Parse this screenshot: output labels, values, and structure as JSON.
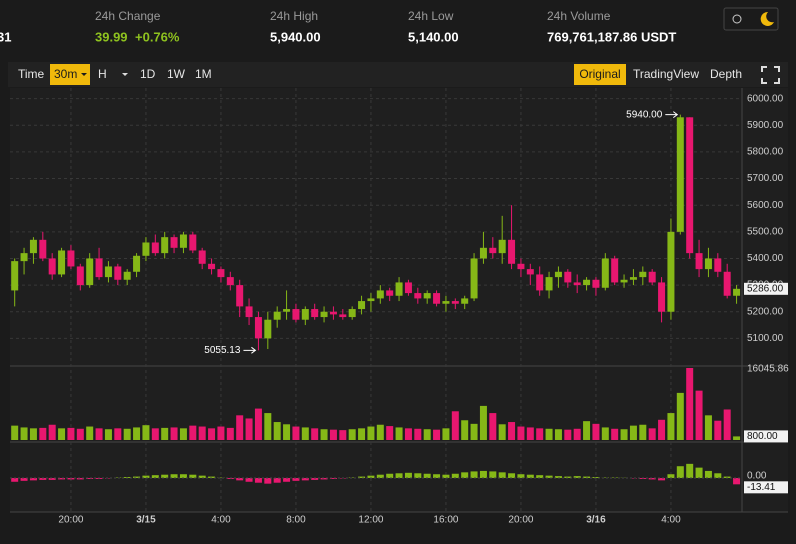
{
  "header": {
    "pair_fragment": "31",
    "stats": [
      {
        "label": "24h Change",
        "value": "39.99",
        "change": "+0.76%"
      },
      {
        "label": "24h High",
        "value": "5,940.00"
      },
      {
        "label": "24h Low",
        "value": "5,140.00"
      },
      {
        "label": "24h Volume",
        "value": "769,761,187.86 USDT"
      }
    ]
  },
  "toolbar": {
    "intervals": [
      {
        "label": "Time"
      },
      {
        "label": "30m",
        "active": true
      },
      {
        "label": "H"
      },
      {
        "label": "1D"
      },
      {
        "label": "1W"
      },
      {
        "label": "1M"
      }
    ],
    "views": [
      {
        "label": "Original",
        "active": true
      },
      {
        "label": "TradingView"
      },
      {
        "label": "Depth"
      }
    ]
  },
  "chart_data": {
    "type": "candlestick",
    "categories": [
      null,
      null,
      null,
      null,
      null,
      null,
      "20:00",
      null,
      null,
      null,
      null,
      null,
      null,
      null,
      "3/15",
      null,
      null,
      null,
      null,
      null,
      null,
      null,
      "4:00",
      null,
      null,
      null,
      null,
      null,
      null,
      null,
      "8:00",
      null,
      null,
      null,
      null,
      null,
      null,
      null,
      "12:00",
      null,
      null,
      null,
      null,
      null,
      null,
      null,
      "16:00",
      null,
      null,
      null,
      null,
      null,
      null,
      null,
      "20:00",
      null,
      null,
      null,
      null,
      null,
      null,
      null,
      "3/16",
      null,
      null,
      null,
      null,
      null,
      null,
      null,
      "4:00",
      null,
      null,
      null,
      null,
      null,
      null,
      null
    ],
    "open": [
      5280,
      5390,
      5420,
      5470,
      5400,
      5340,
      5430,
      5370,
      5300,
      5400,
      5330,
      5370,
      5320,
      5350,
      5410,
      5460,
      5420,
      5480,
      5440,
      5490,
      5430,
      5380,
      5360,
      5330,
      5300,
      5220,
      5180,
      5100,
      5170,
      5200,
      5210,
      5170,
      5210,
      5180,
      5200,
      5190,
      5180,
      5210,
      5240,
      5250,
      5280,
      5260,
      5310,
      5270,
      5250,
      5270,
      5230,
      5240,
      5230,
      5250,
      5400,
      5440,
      5420,
      5470,
      5380,
      5360,
      5340,
      5280,
      5330,
      5350,
      5310,
      5300,
      5320,
      5290,
      5400,
      5310,
      5320,
      5330,
      5350,
      5310,
      5200,
      5500,
      5930,
      5420,
      5360,
      5400,
      5350,
      5260
    ],
    "high": [
      5400,
      5440,
      5480,
      5500,
      5420,
      5440,
      5450,
      5380,
      5420,
      5440,
      5390,
      5380,
      5360,
      5420,
      5480,
      5490,
      5500,
      5490,
      5500,
      5500,
      5440,
      5400,
      5370,
      5350,
      5320,
      5250,
      5200,
      5200,
      5220,
      5280,
      5230,
      5220,
      5230,
      5220,
      5220,
      5210,
      5220,
      5260,
      5270,
      5300,
      5290,
      5330,
      5320,
      5290,
      5280,
      5280,
      5260,
      5250,
      5260,
      5420,
      5500,
      5480,
      5560,
      5600,
      5400,
      5380,
      5370,
      5350,
      5370,
      5360,
      5340,
      5330,
      5330,
      5420,
      5410,
      5340,
      5360,
      5370,
      5360,
      5330,
      5550,
      5940,
      5930,
      5470,
      5440,
      5420,
      5380,
      5300
    ],
    "low": [
      5220,
      5340,
      5380,
      5390,
      5320,
      5330,
      5360,
      5280,
      5290,
      5320,
      5310,
      5300,
      5300,
      5330,
      5390,
      5410,
      5400,
      5420,
      5420,
      5420,
      5360,
      5340,
      5310,
      5280,
      5180,
      5150,
      5055.13,
      5060,
      5140,
      5170,
      5160,
      5150,
      5170,
      5160,
      5170,
      5170,
      5170,
      5190,
      5200,
      5230,
      5240,
      5240,
      5260,
      5230,
      5230,
      5220,
      5200,
      5210,
      5210,
      5240,
      5380,
      5400,
      5380,
      5360,
      5330,
      5300,
      5260,
      5250,
      5290,
      5290,
      5270,
      5280,
      5260,
      5280,
      5300,
      5290,
      5300,
      5300,
      5300,
      5160,
      5170,
      5490,
      5400,
      5330,
      5330,
      5330,
      5250,
      5230
    ],
    "close": [
      5390,
      5420,
      5470,
      5400,
      5340,
      5430,
      5370,
      5300,
      5400,
      5330,
      5370,
      5320,
      5350,
      5410,
      5460,
      5420,
      5480,
      5440,
      5490,
      5430,
      5380,
      5360,
      5330,
      5300,
      5220,
      5180,
      5100,
      5170,
      5200,
      5210,
      5170,
      5210,
      5180,
      5200,
      5190,
      5180,
      5210,
      5240,
      5250,
      5280,
      5260,
      5310,
      5270,
      5250,
      5270,
      5230,
      5240,
      5230,
      5250,
      5400,
      5440,
      5420,
      5470,
      5380,
      5360,
      5340,
      5280,
      5330,
      5350,
      5310,
      5300,
      5320,
      5290,
      5400,
      5310,
      5320,
      5330,
      5350,
      5310,
      5200,
      5500,
      5930,
      5420,
      5360,
      5400,
      5350,
      5260,
      5286
    ],
    "up_color": "#86b817",
    "down_color": "#e8176f",
    "ylim": [
      5000,
      6040
    ],
    "yticks": [
      {
        "value": 5100,
        "label": "5100.00"
      },
      {
        "value": 5200,
        "label": "5200.00"
      },
      {
        "value": 5300,
        "label": "5300.00"
      },
      {
        "value": 5400,
        "label": "5400.00"
      },
      {
        "value": 5500,
        "label": "5500.00"
      },
      {
        "value": 5600,
        "label": "5600.00"
      },
      {
        "value": 5700,
        "label": "5700.00"
      },
      {
        "value": 5800,
        "label": "5800.00"
      },
      {
        "value": 5900,
        "label": "5900.00"
      },
      {
        "value": 6000,
        "label": "6000.00"
      }
    ],
    "grid": true,
    "annotations": [
      {
        "value": 5940,
        "label": "5940.00",
        "field": "high"
      },
      {
        "value": 5055.13,
        "label": "5055.13",
        "field": "low"
      }
    ],
    "last_price": {
      "value": 5286,
      "label": "5286.00"
    },
    "volume": {
      "values": [
        3200,
        2800,
        2600,
        2700,
        3400,
        2600,
        2700,
        2500,
        3000,
        2600,
        2400,
        2600,
        2500,
        2800,
        3300,
        2600,
        2700,
        2800,
        2600,
        3200,
        3000,
        2600,
        3000,
        2700,
        5500,
        4800,
        7000,
        6000,
        4000,
        3500,
        3000,
        2800,
        2600,
        2400,
        2300,
        2200,
        2400,
        2600,
        3000,
        3400,
        3100,
        2800,
        2600,
        2500,
        2400,
        2300,
        2600,
        6400,
        4400,
        3600,
        7600,
        6000,
        3500,
        4000,
        3000,
        2800,
        2600,
        2500,
        2400,
        2300,
        2500,
        4200,
        3600,
        2800,
        2500,
        2400,
        3200,
        3400,
        2600,
        4500,
        6000,
        10500,
        16045.86,
        11000,
        5500,
        4300,
        6800,
        800
      ],
      "ylim": [
        0,
        16045.86
      ],
      "yticks": [
        16045.86
      ],
      "last": {
        "value": 800,
        "label": "800.00"
      }
    },
    "macd": {
      "values": [
        -8,
        -6,
        -5,
        -4,
        -4,
        -3,
        -3,
        -3,
        -2,
        -2,
        -1,
        1,
        2,
        3,
        5,
        6,
        7,
        8,
        8,
        7,
        5,
        3,
        1,
        -2,
        -5,
        -8,
        -10,
        -12,
        -10,
        -8,
        -6,
        -5,
        -4,
        -3,
        -2,
        -1,
        1,
        3,
        5,
        7,
        9,
        10,
        11,
        10,
        9,
        8,
        7,
        9,
        12,
        14,
        15,
        14,
        12,
        10,
        8,
        7,
        6,
        5,
        4,
        3,
        4,
        3,
        2,
        1,
        1,
        0.5,
        -1,
        -2,
        -3,
        -5,
        8,
        25,
        30,
        22,
        15,
        10,
        3,
        -13.41
      ],
      "ylim": [
        -70,
        70
      ],
      "yticks": [
        {
          "value": 0,
          "label": "0.00"
        }
      ],
      "last": -13.41
    }
  }
}
